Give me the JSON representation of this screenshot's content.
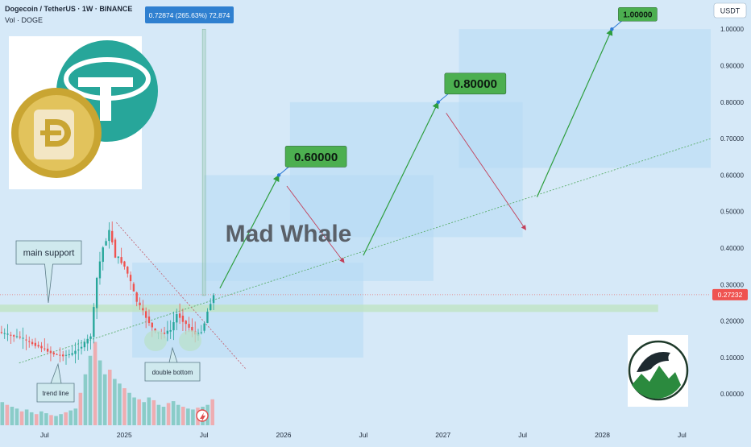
{
  "header": {
    "title": "Dogecoin / TetherUS · 1W · BINANCE",
    "volume": "Vol · DOGE"
  },
  "currency_label": "USDT",
  "measure_label": "0.72874 (265.63%) 72,874",
  "last_price_label": "0.27232",
  "watermark": "Mad Whale",
  "annotations": {
    "main_support": "main support",
    "trend_line": "trend line",
    "double_bottom": "double bottom"
  },
  "targets": [
    "0.60000",
    "0.80000",
    "1.00000"
  ],
  "colors": {
    "background": "#d6e9f8",
    "up_candle": "#26a69a",
    "down_candle": "#ef5350",
    "target_fill": "#4caf50",
    "arrow_green": "#2e9e3e",
    "arrow_red": "#c2405a",
    "zone_fill": "#b7daf4",
    "support_band": "#bfe3c3"
  },
  "chart_data": {
    "type": "candlestick",
    "ylim": [
      -0.09,
      1.08
    ],
    "y_ticks": [
      0.0,
      0.1,
      0.2,
      0.3,
      0.4,
      0.5,
      0.6,
      0.7,
      0.8,
      0.9,
      1.0
    ],
    "y_tick_labels": [
      "0.00000",
      "0.10000",
      "0.20000",
      "0.30000",
      "0.40000",
      "0.50000",
      "0.60000",
      "0.70000",
      "0.80000",
      "0.90000",
      "1.00000"
    ],
    "x_ticks": [
      {
        "label": "Jul",
        "t": 2024.5
      },
      {
        "label": "2025",
        "t": 2025.0
      },
      {
        "label": "Jul",
        "t": 2025.5
      },
      {
        "label": "2026",
        "t": 2026.0
      },
      {
        "label": "Jul",
        "t": 2026.5
      },
      {
        "label": "2027",
        "t": 2027.0
      },
      {
        "label": "Jul",
        "t": 2027.5
      },
      {
        "label": "2028",
        "t": 2028.0
      },
      {
        "label": "Jul",
        "t": 2028.5
      }
    ],
    "x_range": [
      2024.22,
      2028.68
    ],
    "price_keypoints": [
      [
        2024.22,
        0.17
      ],
      [
        2024.3,
        0.16
      ],
      [
        2024.36,
        0.155
      ],
      [
        2024.42,
        0.14
      ],
      [
        2024.5,
        0.125
      ],
      [
        2024.56,
        0.11
      ],
      [
        2024.62,
        0.105
      ],
      [
        2024.68,
        0.11
      ],
      [
        2024.74,
        0.13
      ],
      [
        2024.8,
        0.16
      ],
      [
        2024.84,
        0.33
      ],
      [
        2024.88,
        0.41
      ],
      [
        2024.92,
        0.45
      ],
      [
        2024.95,
        0.38
      ],
      [
        2025.0,
        0.36
      ],
      [
        2025.04,
        0.32
      ],
      [
        2025.08,
        0.26
      ],
      [
        2025.12,
        0.23
      ],
      [
        2025.16,
        0.2
      ],
      [
        2025.2,
        0.17
      ],
      [
        2025.25,
        0.165
      ],
      [
        2025.3,
        0.175
      ],
      [
        2025.34,
        0.22
      ],
      [
        2025.38,
        0.2
      ],
      [
        2025.42,
        0.18
      ],
      [
        2025.46,
        0.16
      ],
      [
        2025.5,
        0.175
      ],
      [
        2025.54,
        0.24
      ],
      [
        2025.57,
        0.27
      ]
    ],
    "current_price": 0.27232,
    "support_band": [
      0.225,
      0.245
    ],
    "trend_line": {
      "from": [
        2024.34,
        0.085
      ],
      "to": [
        2028.68,
        0.7
      ]
    },
    "down_trend_line": {
      "from": [
        2024.95,
        0.47
      ],
      "to": [
        2025.76,
        0.07
      ]
    },
    "volume": [
      0.25,
      0.22,
      0.2,
      0.18,
      0.15,
      0.17,
      0.14,
      0.12,
      0.15,
      0.13,
      0.11,
      0.1,
      0.12,
      0.14,
      0.16,
      0.18,
      0.35,
      0.55,
      0.75,
      0.9,
      0.7,
      0.55,
      0.6,
      0.5,
      0.45,
      0.4,
      0.35,
      0.3,
      0.28,
      0.25,
      0.3,
      0.27,
      0.22,
      0.2,
      0.24,
      0.26,
      0.22,
      0.2,
      0.18,
      0.17,
      0.19,
      0.2,
      0.22,
      0.28
    ],
    "projection_path": [
      [
        2025.6,
        0.29
      ],
      [
        2025.97,
        0.6
      ],
      [
        2026.15,
        0.4
      ],
      [
        2026.5,
        0.43
      ],
      [
        2026.97,
        0.8
      ],
      [
        2027.05,
        0.77
      ],
      [
        2027.45,
        0.49
      ],
      [
        2027.59,
        0.55
      ],
      [
        2028.06,
        1.0
      ]
    ],
    "projection_segments": [
      {
        "from": [
          2025.6,
          0.29
        ],
        "to": [
          2025.97,
          0.6
        ],
        "dir": "up"
      },
      {
        "from": [
          2026.02,
          0.57
        ],
        "to": [
          2026.38,
          0.36
        ],
        "dir": "down"
      },
      {
        "from": [
          2026.5,
          0.38
        ],
        "to": [
          2026.97,
          0.8
        ],
        "dir": "up"
      },
      {
        "from": [
          2027.02,
          0.77
        ],
        "to": [
          2027.52,
          0.45
        ],
        "dir": "down"
      },
      {
        "from": [
          2027.59,
          0.54
        ],
        "to": [
          2028.06,
          1.0
        ],
        "dir": "up"
      }
    ],
    "zones": [
      {
        "t0": 2025.05,
        "t1": 2026.5,
        "y0": 0.1,
        "y1": 0.36
      },
      {
        "t0": 2025.5,
        "t1": 2026.94,
        "y0": 0.31,
        "y1": 0.6
      },
      {
        "t0": 2026.04,
        "t1": 2027.5,
        "y0": 0.43,
        "y1": 0.8
      },
      {
        "t0": 2027.1,
        "t1": 2028.68,
        "y0": 0.62,
        "y1": 1.0
      }
    ],
    "target_points": [
      {
        "t": 2025.97,
        "y": 0.6,
        "label_index": 0
      },
      {
        "t": 2026.97,
        "y": 0.8,
        "label_index": 1
      },
      {
        "t": 2028.06,
        "y": 1.0,
        "label_index": 2
      }
    ],
    "measure_tool": {
      "t": 2025.5,
      "y0": 0.27,
      "y1": 1.0
    }
  }
}
